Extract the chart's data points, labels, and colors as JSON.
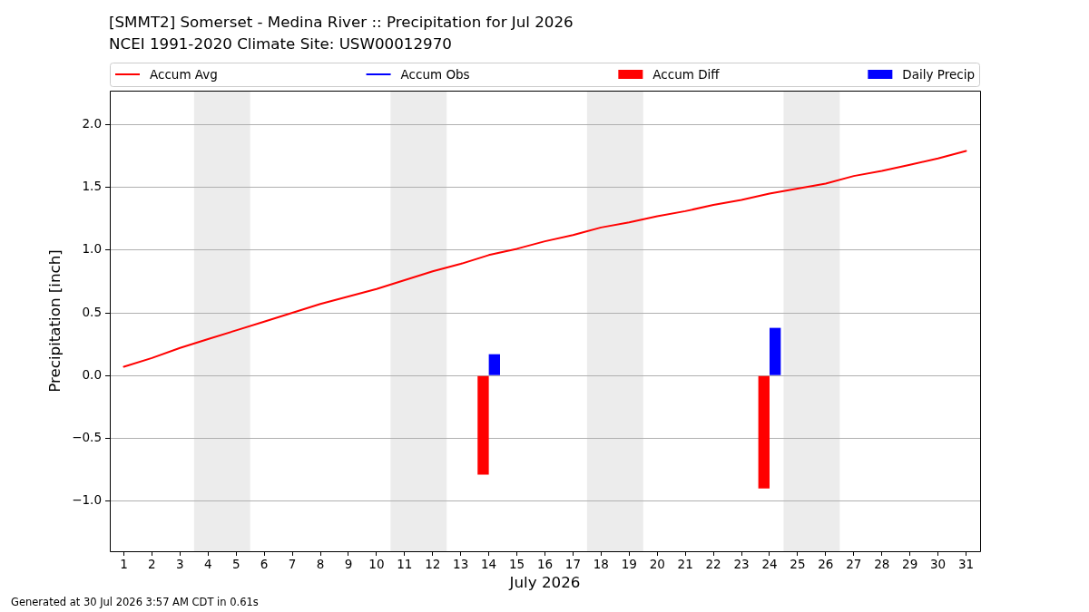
{
  "chart_data": {
    "type": "line",
    "title": "[SMMT2] Somerset - Medina River :: Precipitation for Jul 2026",
    "subtitle": "NCEI 1991-2020 Climate Site: USW00012970",
    "xlabel": "July 2026",
    "ylabel": "Precipitation [inch]",
    "annotations": [
      "Generated at 30 Jul 2026 3:57 AM CDT in 0.61s"
    ],
    "x": [
      1,
      2,
      3,
      4,
      5,
      6,
      7,
      8,
      9,
      10,
      11,
      12,
      13,
      14,
      15,
      16,
      17,
      18,
      19,
      20,
      21,
      22,
      23,
      24,
      25,
      26,
      27,
      28,
      29,
      30,
      31
    ],
    "series": [
      {
        "name": "Accum Avg",
        "color": "#ff0000",
        "values": [
          0.07,
          0.14,
          0.22,
          0.29,
          0.36,
          0.43,
          0.5,
          0.57,
          0.63,
          0.69,
          0.76,
          0.83,
          0.89,
          0.96,
          1.01,
          1.07,
          1.12,
          1.18,
          1.22,
          1.27,
          1.31,
          1.36,
          1.4,
          1.45,
          1.49,
          1.53,
          1.59,
          1.63,
          1.68,
          1.73,
          1.79
        ]
      },
      {
        "name": "Accum Obs",
        "color": "#0000ff",
        "values": [
          null,
          null,
          null,
          null,
          null,
          null,
          null,
          null,
          null,
          null,
          null,
          null,
          null,
          null,
          null,
          null,
          null,
          null,
          null,
          null,
          null,
          null,
          null,
          null,
          null,
          null,
          null,
          null,
          null,
          null,
          null
        ]
      },
      {
        "name": "Accum Diff",
        "type": "bar",
        "color": "#ff0000",
        "values": [
          null,
          null,
          null,
          null,
          null,
          null,
          null,
          null,
          null,
          null,
          null,
          null,
          null,
          -0.79,
          null,
          null,
          null,
          null,
          null,
          null,
          null,
          null,
          null,
          -0.9,
          null,
          null,
          null,
          null,
          null,
          null,
          null
        ]
      },
      {
        "name": "Daily Precip",
        "type": "bar",
        "color": "#0000ff",
        "values": [
          null,
          null,
          null,
          null,
          null,
          null,
          null,
          null,
          null,
          null,
          null,
          null,
          null,
          0.17,
          null,
          null,
          null,
          null,
          null,
          null,
          null,
          null,
          null,
          0.38,
          null,
          null,
          null,
          null,
          null,
          null,
          null
        ]
      }
    ],
    "xlim": [
      0.5,
      31.5
    ],
    "xticks": [
      1,
      2,
      3,
      4,
      5,
      6,
      7,
      8,
      9,
      10,
      11,
      12,
      13,
      14,
      15,
      16,
      17,
      18,
      19,
      20,
      21,
      22,
      23,
      24,
      25,
      26,
      27,
      28,
      29,
      30,
      31
    ],
    "ylim": [
      -1.4,
      2.27
    ],
    "yticks": [
      {
        "value": -1,
        "label": "−1.0"
      },
      {
        "value": -0.5,
        "label": "−0.5"
      },
      {
        "value": 0,
        "label": "0.0"
      },
      {
        "value": 0.5,
        "label": "0.5"
      },
      {
        "value": 1,
        "label": "1.0"
      },
      {
        "value": 1.5,
        "label": "1.5"
      },
      {
        "value": 2,
        "label": "2.0"
      }
    ],
    "bands": [
      {
        "axis": "x",
        "from": 3.5,
        "to": 5.5,
        "color": "#ececec"
      },
      {
        "axis": "x",
        "from": 10.5,
        "to": 12.5,
        "color": "#ececec"
      },
      {
        "axis": "x",
        "from": 17.5,
        "to": 19.5,
        "color": "#ececec"
      },
      {
        "axis": "x",
        "from": 24.5,
        "to": 26.5,
        "color": "#ececec"
      }
    ],
    "grid": "y",
    "legend": "top"
  }
}
